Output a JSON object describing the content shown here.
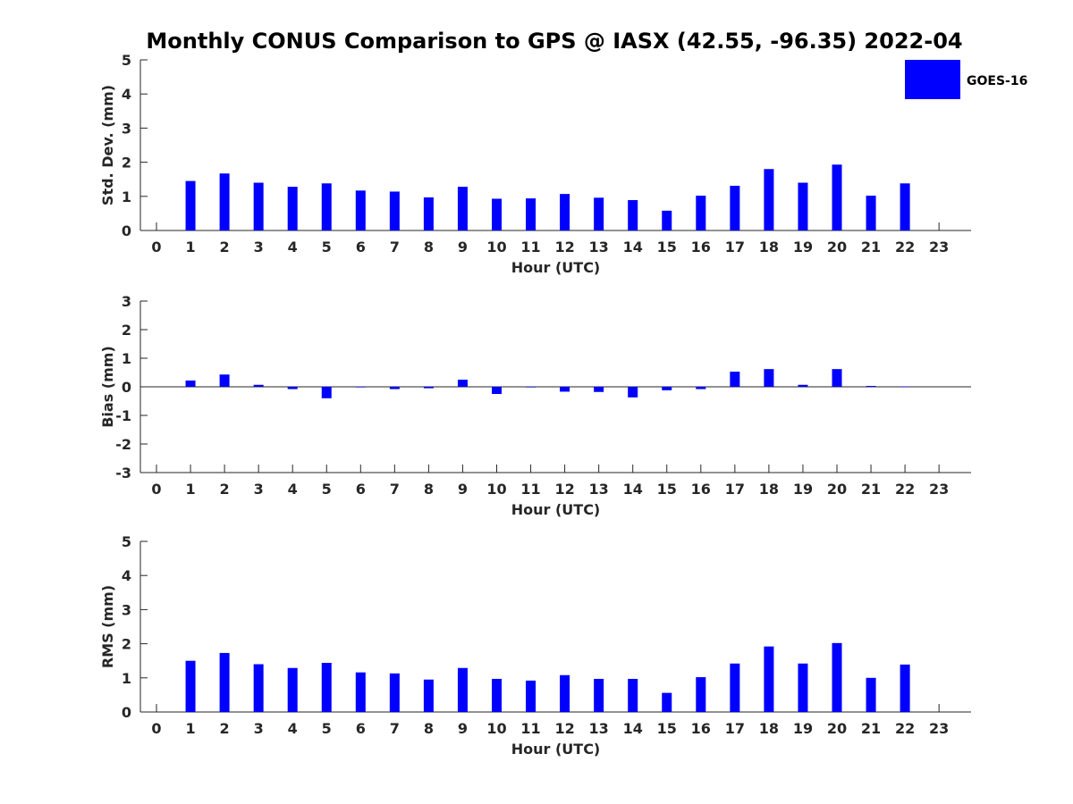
{
  "figure": {
    "title": "Monthly CONUS Comparison to GPS @ IASX (42.55, -96.35) 2022-04",
    "legend_label": "GOES-16"
  },
  "colors": {
    "bar": "#0000ff",
    "axis": "#262626"
  },
  "chart_data": [
    {
      "type": "bar",
      "xlabel": "Hour (UTC)",
      "ylabel": "Std. Dev. (mm)",
      "ylim": [
        0,
        5
      ],
      "yticks": [
        0,
        1,
        2,
        3,
        4,
        5
      ],
      "categories": [
        "0",
        "1",
        "2",
        "3",
        "4",
        "5",
        "6",
        "7",
        "8",
        "9",
        "10",
        "11",
        "12",
        "13",
        "14",
        "15",
        "16",
        "17",
        "18",
        "19",
        "20",
        "21",
        "22",
        "23"
      ],
      "series": [
        {
          "name": "GOES-16",
          "values": [
            null,
            1.45,
            1.67,
            1.4,
            1.28,
            1.38,
            1.17,
            1.14,
            0.97,
            1.28,
            0.93,
            0.94,
            1.07,
            0.96,
            0.89,
            0.58,
            1.02,
            1.31,
            1.8,
            1.4,
            1.93,
            1.02,
            1.38,
            null
          ]
        }
      ],
      "legend": "top-right",
      "grid": false
    },
    {
      "type": "bar",
      "xlabel": "Hour (UTC)",
      "ylabel": "Bias (mm)",
      "ylim": [
        -3,
        3
      ],
      "yticks": [
        -3,
        -2,
        -1,
        0,
        1,
        2,
        3
      ],
      "zero_line": true,
      "categories": [
        "0",
        "1",
        "2",
        "3",
        "4",
        "5",
        "6",
        "7",
        "8",
        "9",
        "10",
        "11",
        "12",
        "13",
        "14",
        "15",
        "16",
        "17",
        "18",
        "19",
        "20",
        "21",
        "22",
        "23"
      ],
      "series": [
        {
          "name": "GOES-16",
          "values": [
            null,
            0.22,
            0.43,
            0.07,
            -0.08,
            -0.4,
            -0.02,
            -0.08,
            -0.05,
            0.25,
            -0.25,
            -0.02,
            -0.17,
            -0.18,
            -0.37,
            -0.12,
            -0.08,
            0.53,
            0.62,
            0.07,
            0.62,
            0.03,
            -0.01,
            null
          ]
        }
      ],
      "grid": false
    },
    {
      "type": "bar",
      "xlabel": "Hour (UTC)",
      "ylabel": "RMS (mm)",
      "ylim": [
        0,
        5
      ],
      "yticks": [
        0,
        1,
        2,
        3,
        4,
        5
      ],
      "categories": [
        "0",
        "1",
        "2",
        "3",
        "4",
        "5",
        "6",
        "7",
        "8",
        "9",
        "10",
        "11",
        "12",
        "13",
        "14",
        "15",
        "16",
        "17",
        "18",
        "19",
        "20",
        "21",
        "22",
        "23"
      ],
      "series": [
        {
          "name": "GOES-16",
          "values": [
            null,
            1.5,
            1.73,
            1.4,
            1.29,
            1.44,
            1.16,
            1.13,
            0.95,
            1.29,
            0.97,
            0.92,
            1.08,
            0.97,
            0.97,
            0.56,
            1.02,
            1.42,
            1.92,
            1.42,
            2.02,
            1.0,
            1.39,
            null
          ]
        }
      ],
      "grid": false
    }
  ]
}
